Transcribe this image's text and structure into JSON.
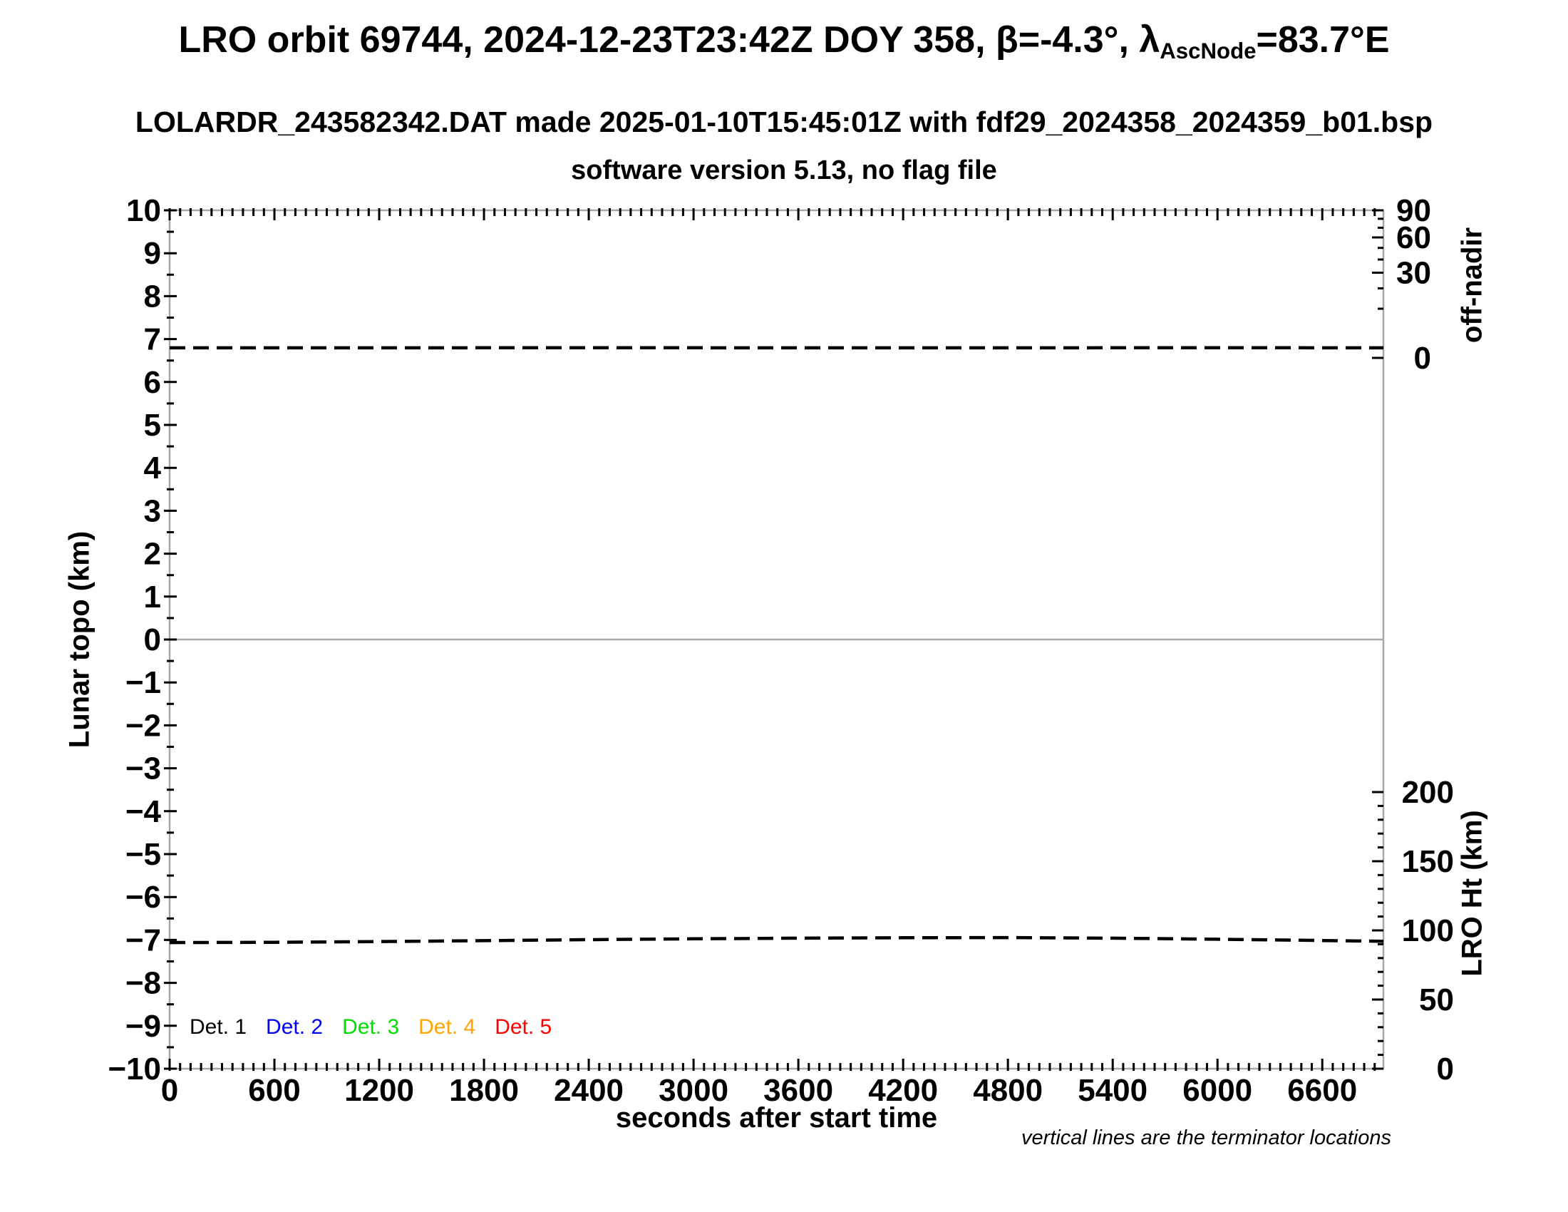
{
  "header": {
    "title_main": "LRO orbit 69744, 2024-12-23T23:42Z DOY 358, β=-4.3°, λ",
    "title_sub": "AscNode",
    "title_suffix": "=83.7°E",
    "line2": "LOLARDR_243582342.DAT made 2025-01-10T15:45:01Z with fdf29_2024358_2024359_b01.bsp",
    "line3": "software version 5.13, no flag file"
  },
  "chart_data": {
    "type": "line",
    "frame_color": "#a8a8a8",
    "tick_color": "#000000",
    "x_axis": {
      "label": "seconds after start time",
      "min": 0,
      "max": 6950,
      "major_tick_step": 600,
      "minor_tick_step": 60,
      "tick_labels": [
        0,
        600,
        1200,
        1800,
        2400,
        3000,
        3600,
        4200,
        4800,
        5400,
        6000,
        6600
      ]
    },
    "y_left": {
      "label": "Lunar topo (km)",
      "min": -10,
      "max": 10,
      "major_tick_step": 1,
      "minor_tick_step": 0.5,
      "tick_labels": [
        10,
        9,
        8,
        7,
        6,
        5,
        4,
        3,
        2,
        1,
        0,
        -1,
        -2,
        -3,
        -4,
        -5,
        -6,
        -7,
        -8,
        -9,
        -10
      ],
      "zero_line": true
    },
    "y_right_top": {
      "label": "off-nadir",
      "min": 0,
      "max": 90,
      "scale": "sqrt",
      "major_ticks": [
        90,
        60,
        30,
        0
      ],
      "minor_tick_step": 10,
      "tick_labels": [
        90,
        60,
        30,
        0
      ]
    },
    "y_right_bottom": {
      "label": "LRO Ht (km)",
      "min": 0,
      "max": 200,
      "major_ticks": [
        200,
        150,
        100,
        50,
        0
      ],
      "minor_tick_step": 10,
      "tick_labels": [
        200,
        150,
        100,
        50,
        0
      ]
    },
    "series": [
      {
        "name": "off-nadir-angle-line",
        "axis": "right_top",
        "line_style": "dashed",
        "color": "#000000",
        "points": [
          [
            0,
            0.42
          ],
          [
            1200,
            0.42
          ],
          [
            2400,
            0.43
          ],
          [
            3600,
            0.42
          ],
          [
            4800,
            0.42
          ],
          [
            6000,
            0.43
          ],
          [
            6950,
            0.42
          ]
        ]
      },
      {
        "name": "lro-height-line",
        "axis": "right_bottom",
        "line_style": "dashed",
        "color": "#000000",
        "points": [
          [
            0,
            91.2
          ],
          [
            600,
            91.4
          ],
          [
            1200,
            91.9
          ],
          [
            1800,
            92.6
          ],
          [
            2400,
            93.3
          ],
          [
            3000,
            93.9
          ],
          [
            3600,
            94.4
          ],
          [
            4200,
            94.7
          ],
          [
            4800,
            94.8
          ],
          [
            5400,
            94.4
          ],
          [
            6000,
            93.6
          ],
          [
            6600,
            92.7
          ],
          [
            6950,
            92.1
          ]
        ]
      }
    ]
  },
  "legend": {
    "items": [
      {
        "label": "Det. 1",
        "color": "#000000"
      },
      {
        "label": "Det. 2",
        "color": "#0000ee"
      },
      {
        "label": "Det. 3",
        "color": "#00dd00"
      },
      {
        "label": "Det. 4",
        "color": "#ffa500"
      },
      {
        "label": "Det. 5",
        "color": "#ff0000"
      }
    ]
  },
  "footnote": "vertical lines are the terminator locations"
}
